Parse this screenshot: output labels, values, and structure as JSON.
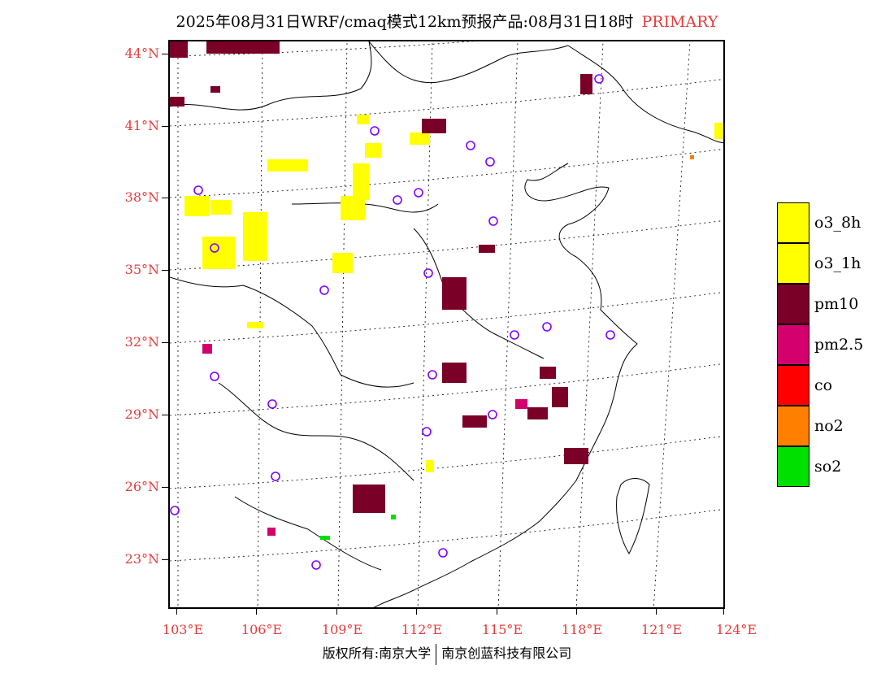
{
  "title": {
    "text": "2025年08月31日WRF/cmaq模式12km预报产品:08月31日18时",
    "tag": "PRIMARY"
  },
  "axes": {
    "lat_labels": [
      "44°N",
      "41°N",
      "38°N",
      "35°N",
      "32°N",
      "29°N",
      "26°N",
      "23°N"
    ],
    "lon_labels": [
      "103°E",
      "106°E",
      "109°E",
      "112°E",
      "115°E",
      "118°E",
      "121°E",
      "124°E"
    ]
  },
  "legend": [
    {
      "label": "o3_8h",
      "color": "#ffff00"
    },
    {
      "label": "o3_1h",
      "color": "#ffff00"
    },
    {
      "label": "pm10",
      "color": "#7a0028"
    },
    {
      "label": "pm2.5",
      "color": "#d4006e"
    },
    {
      "label": "co",
      "color": "#ff0000"
    },
    {
      "label": "no2",
      "color": "#ff7f00"
    },
    {
      "label": "so2",
      "color": "#00e000"
    }
  ],
  "footer": {
    "left": "版权所有:南京大学",
    "right": "南京创蓝科技有限公司"
  }
}
